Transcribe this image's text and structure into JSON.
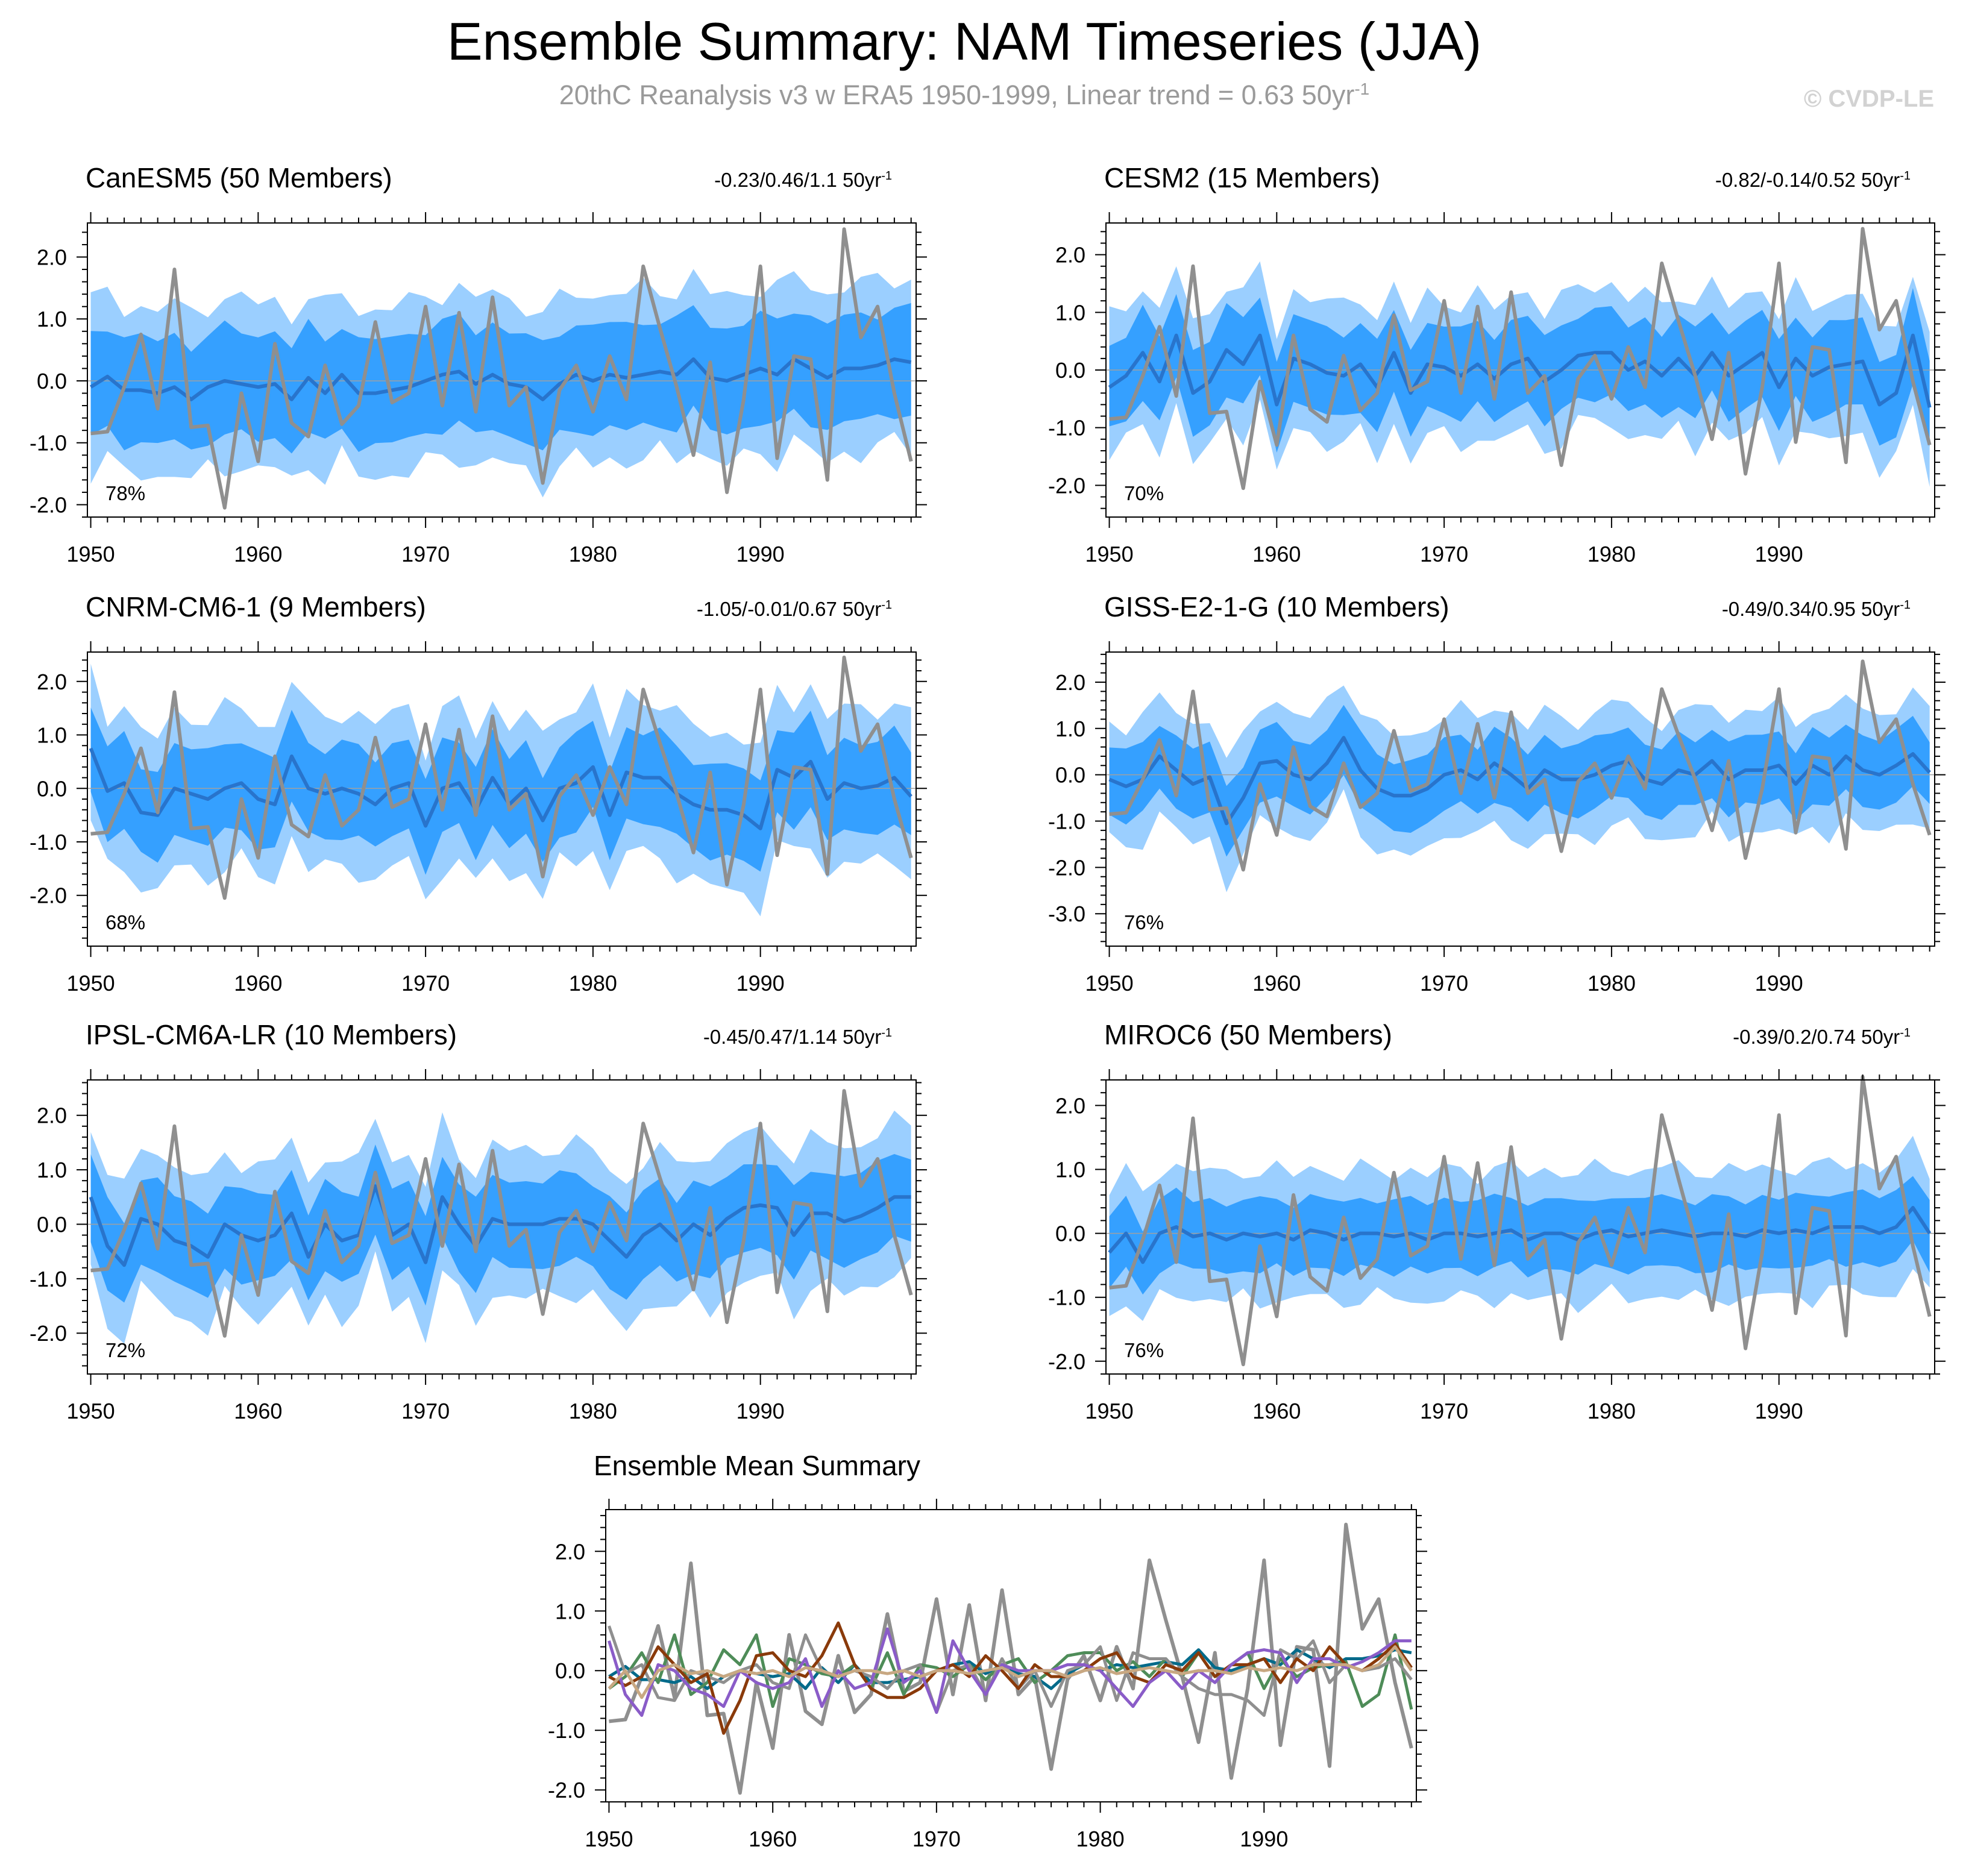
{
  "title": "Ensemble Summary: NAM Timeseries (JJA)",
  "subtitle": "20thC Reanalysis v3 w ERA5 1950-1999, Linear trend = 0.63 50yr",
  "subtitle_unit_exponent": "-1",
  "copyright": "© CVDP-LE",
  "colors": {
    "outer_band": "#9bcfff",
    "inner_band": "#35a0ff",
    "ens_mean_line": "#2874cc",
    "observed": "#8f8f8f",
    "zero_line": "#a0a0a0"
  },
  "chart_data": {
    "type": "line",
    "x": [
      1950,
      1951,
      1952,
      1953,
      1954,
      1955,
      1956,
      1957,
      1958,
      1959,
      1960,
      1961,
      1962,
      1963,
      1964,
      1965,
      1966,
      1967,
      1968,
      1969,
      1970,
      1971,
      1972,
      1973,
      1974,
      1975,
      1976,
      1977,
      1978,
      1979,
      1980,
      1981,
      1982,
      1983,
      1984,
      1985,
      1986,
      1987,
      1988,
      1989,
      1990,
      1991,
      1992,
      1993,
      1994,
      1995,
      1996,
      1997,
      1998,
      1999
    ],
    "xlim": [
      1949.8,
      1999.3
    ],
    "xticks": [
      1950,
      1960,
      1970,
      1980,
      1990
    ],
    "observed": {
      "name": "20thC Reanalysis v3 w ERA5",
      "values": [
        -0.85,
        -0.82,
        -0.1,
        0.75,
        -0.45,
        1.8,
        -0.75,
        -0.72,
        -2.05,
        -0.2,
        -1.3,
        0.6,
        -0.68,
        -0.9,
        0.25,
        -0.7,
        -0.4,
        0.95,
        -0.35,
        -0.2,
        1.2,
        -0.4,
        1.1,
        -0.5,
        1.35,
        -0.4,
        -0.1,
        -1.65,
        -0.15,
        0.25,
        -0.5,
        0.4,
        -0.3,
        1.85,
        0.85,
        -0.1,
        -1.2,
        0.3,
        -1.8,
        -0.3,
        1.85,
        -1.25,
        0.4,
        0.35,
        -1.6,
        2.45,
        0.7,
        1.2,
        -0.2,
        -1.3
      ]
    },
    "panels": [
      {
        "name": "CanESM5",
        "members_label": "(50 Members)",
        "color": "#006a8a",
        "trend_label": "-0.23/0.46/1.1",
        "trend_unit": "50yr",
        "pct": "78%",
        "ylim": [
          -2.2,
          2.55
        ],
        "yticks": [
          -2,
          -1,
          0,
          1,
          2
        ],
        "ytick_labels": [
          "-2.0",
          "-1.0",
          "0.0",
          "1.0",
          "2.0"
        ],
        "ens_mean": [
          -0.1,
          0.07,
          -0.15,
          -0.15,
          -0.2,
          -0.1,
          -0.3,
          -0.1,
          0.0,
          -0.05,
          -0.1,
          -0.05,
          -0.3,
          0.05,
          -0.2,
          0.1,
          -0.2,
          -0.2,
          -0.15,
          -0.1,
          0.0,
          0.1,
          0.15,
          -0.05,
          0.1,
          -0.05,
          -0.1,
          -0.3,
          -0.05,
          0.1,
          0.0,
          0.1,
          0.05,
          0.1,
          0.15,
          0.1,
          0.35,
          0.05,
          0.0,
          0.1,
          0.2,
          0.1,
          0.35,
          0.2,
          0.05,
          0.2,
          0.2,
          0.25,
          0.35,
          0.3
        ],
        "inner_sd": 0.85,
        "outer_sd": 1.35
      },
      {
        "name": "CESM2",
        "members_label": "(15 Members)",
        "color": "#4e8c58",
        "trend_label": "-0.82/-0.14/0.52",
        "trend_unit": "50yr",
        "pct": "70%",
        "ylim": [
          -2.55,
          2.55
        ],
        "yticks": [
          -2,
          -1,
          0,
          1,
          2
        ],
        "ytick_labels": [
          "-2.0",
          "-1.0",
          "0.0",
          "1.0",
          "2.0"
        ],
        "ens_mean": [
          -0.3,
          -0.1,
          0.3,
          -0.2,
          0.6,
          -0.4,
          -0.2,
          0.35,
          0.1,
          0.6,
          -0.6,
          0.2,
          0.1,
          -0.05,
          -0.1,
          0.1,
          -0.3,
          0.3,
          -0.4,
          0.1,
          0.05,
          -0.1,
          0.1,
          -0.15,
          0.1,
          0.2,
          -0.2,
          0.0,
          0.25,
          0.3,
          0.3,
          0.0,
          0.15,
          -0.1,
          0.2,
          -0.1,
          0.3,
          -0.1,
          0.1,
          0.3,
          -0.3,
          0.2,
          -0.1,
          0.05,
          0.1,
          0.15,
          -0.6,
          -0.4,
          0.6,
          -0.65
        ],
        "inner_sd": 0.75,
        "outer_sd": 1.2
      },
      {
        "name": "CNRM-CM6-1",
        "members_label": "(9 Members)",
        "color": "#8f8f8f",
        "trend_label": "-1.05/-0.01/0.67",
        "trend_unit": "50yr",
        "pct": "68%",
        "ylim": [
          -2.95,
          2.55
        ],
        "yticks": [
          -2,
          -1,
          0,
          1,
          2
        ],
        "ytick_labels": [
          "-2.0",
          "-1.0",
          "0.0",
          "1.0",
          "2.0"
        ],
        "ens_mean": [
          0.75,
          -0.05,
          0.1,
          -0.45,
          -0.5,
          0.0,
          -0.1,
          -0.2,
          0.0,
          0.1,
          -0.2,
          -0.3,
          0.6,
          0.0,
          -0.1,
          0.0,
          -0.1,
          -0.3,
          0.0,
          0.1,
          -0.7,
          0.0,
          0.1,
          -0.4,
          0.2,
          -0.3,
          0.0,
          -0.6,
          0.0,
          0.1,
          0.4,
          -0.5,
          0.3,
          0.2,
          0.2,
          -0.1,
          -0.3,
          -0.4,
          -0.4,
          -0.5,
          -0.75,
          0.35,
          0.2,
          0.5,
          -0.2,
          0.1,
          0.0,
          0.05,
          0.2,
          -0.15
        ],
        "inner_sd": 0.85,
        "outer_sd": 1.45
      },
      {
        "name": "GISS-E2-1-G",
        "members_label": "(10 Members)",
        "color": "#8a3a0a",
        "trend_label": "-0.49/0.34/0.95",
        "trend_unit": "50yr",
        "pct": "76%",
        "ylim": [
          -3.7,
          2.65
        ],
        "yticks": [
          -3,
          -2,
          -1,
          0,
          1,
          2
        ],
        "ytick_labels": [
          "-3.0",
          "-2.0",
          "-1.0",
          "0.0",
          "1.0",
          "2.0"
        ],
        "ens_mean": [
          -0.1,
          -0.25,
          -0.1,
          0.4,
          0.1,
          -0.2,
          -0.05,
          -1.05,
          -0.5,
          0.25,
          0.3,
          0.0,
          -0.1,
          0.25,
          0.8,
          0.1,
          -0.3,
          -0.45,
          -0.45,
          -0.3,
          0.0,
          0.1,
          -0.1,
          0.25,
          0.0,
          -0.3,
          0.1,
          -0.1,
          -0.1,
          0.0,
          0.2,
          0.3,
          -0.1,
          -0.2,
          0.1,
          0.0,
          0.3,
          -0.1,
          0.1,
          0.1,
          0.2,
          -0.2,
          0.2,
          0.0,
          0.4,
          0.1,
          0.0,
          0.2,
          0.45,
          0.05
        ],
        "inner_sd": 0.75,
        "outer_sd": 1.3
      },
      {
        "name": "IPSL-CM6A-LR",
        "members_label": "(10 Members)",
        "color": "#8a5cc8",
        "trend_label": "-0.45/0.47/1.14",
        "trend_unit": "50yr",
        "pct": "72%",
        "ylim": [
          -2.75,
          2.65
        ],
        "yticks": [
          -2,
          -1,
          0,
          1,
          2
        ],
        "ytick_labels": [
          "-2.0",
          "-1.0",
          "0.0",
          "1.0",
          "2.0"
        ],
        "ens_mean": [
          0.5,
          -0.4,
          -0.75,
          0.1,
          0.0,
          -0.3,
          -0.4,
          -0.6,
          0.0,
          -0.2,
          -0.3,
          -0.2,
          0.2,
          -0.6,
          0.0,
          -0.3,
          -0.2,
          0.7,
          -0.2,
          0.0,
          -0.7,
          0.5,
          0.0,
          -0.4,
          0.1,
          0.0,
          0.0,
          0.0,
          0.1,
          0.1,
          0.0,
          -0.3,
          -0.6,
          -0.2,
          0.0,
          -0.3,
          0.0,
          -0.2,
          0.1,
          0.3,
          0.35,
          0.3,
          -0.2,
          0.2,
          0.2,
          0.05,
          0.15,
          0.3,
          0.5,
          0.5
        ],
        "inner_sd": 0.8,
        "outer_sd": 1.35
      },
      {
        "name": "MIROC6",
        "members_label": "(50 Members)",
        "color": "#c8a882",
        "trend_label": "-0.39/0.2/0.74",
        "trend_unit": "50yr",
        "pct": "76%",
        "ylim": [
          -2.2,
          2.4
        ],
        "yticks": [
          -2,
          -1,
          0,
          1,
          2
        ],
        "ytick_labels": [
          "-2.0",
          "-1.0",
          "0.0",
          "1.0",
          "2.0"
        ],
        "ens_mean": [
          -0.3,
          0.0,
          -0.45,
          0.0,
          0.1,
          -0.05,
          0.0,
          -0.1,
          0.0,
          -0.05,
          0.0,
          -0.1,
          0.05,
          0.0,
          -0.1,
          0.0,
          0.0,
          -0.05,
          0.0,
          -0.1,
          0.0,
          0.0,
          -0.05,
          0.0,
          0.05,
          -0.1,
          0.0,
          0.0,
          -0.1,
          0.0,
          0.05,
          -0.05,
          0.0,
          0.05,
          0.0,
          -0.05,
          0.0,
          0.0,
          -0.05,
          0.05,
          0.0,
          0.05,
          0.0,
          0.1,
          0.1,
          0.1,
          0.0,
          0.1,
          0.4,
          0.0
        ],
        "inner_sd": 0.55,
        "outer_sd": 1.0
      }
    ],
    "summary": {
      "title": "Ensemble Mean Summary",
      "ylim": [
        -2.2,
        2.7
      ],
      "yticks": [
        -2,
        -1,
        0,
        1,
        2
      ],
      "ytick_labels": [
        "-2.0",
        "-1.0",
        "0.0",
        "1.0",
        "2.0"
      ]
    }
  }
}
